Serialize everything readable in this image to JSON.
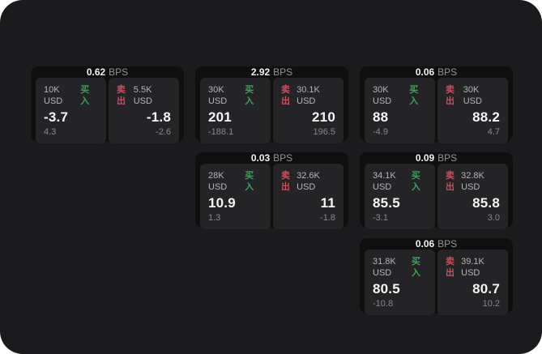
{
  "app": {
    "unit_label": "BPS",
    "buy_label": "买入",
    "sell_label": "卖出"
  },
  "colors": {
    "buy": "#3fa05c",
    "sell": "#cc4d5f",
    "background": "#1b1b1d",
    "card": "#0f0f10",
    "panel": "#242426"
  },
  "cards": [
    {
      "bps": "0.62",
      "buy": {
        "amount": "10K USD",
        "value": "-3.7",
        "delta": "4.3"
      },
      "sell": {
        "amount": "5.5K USD",
        "value": "-1.8",
        "delta": "-2.6"
      }
    },
    {
      "bps": "2.92",
      "buy": {
        "amount": "30K USD",
        "value": "201",
        "delta": "-188.1"
      },
      "sell": {
        "amount": "30.1K USD",
        "value": "210",
        "delta": "196.5"
      }
    },
    {
      "bps": "0.06",
      "buy": {
        "amount": "30K USD",
        "value": "88",
        "delta": "-4.9"
      },
      "sell": {
        "amount": "30K USD",
        "value": "88.2",
        "delta": "4.7"
      }
    },
    {
      "bps": "0.03",
      "buy": {
        "amount": "28K USD",
        "value": "10.9",
        "delta": "1.3"
      },
      "sell": {
        "amount": "32.6K USD",
        "value": "11",
        "delta": "-1.8"
      }
    },
    {
      "bps": "0.09",
      "buy": {
        "amount": "34.1K USD",
        "value": "85.5",
        "delta": "-3.1"
      },
      "sell": {
        "amount": "32.8K USD",
        "value": "85.8",
        "delta": "3.0"
      }
    },
    {
      "bps": "0.06",
      "buy": {
        "amount": "31.8K USD",
        "value": "80.5",
        "delta": "-10.8"
      },
      "sell": {
        "amount": "39.1K USD",
        "value": "80.7",
        "delta": "10.2"
      }
    }
  ]
}
